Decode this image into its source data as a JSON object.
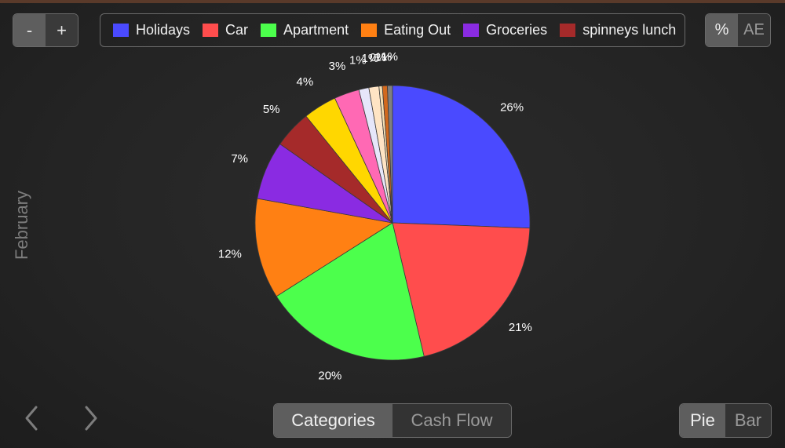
{
  "toolbar": {
    "zoom_out_label": "-",
    "zoom_in_label": "+",
    "unit_percent_label": "%",
    "unit_currency_label": "AE"
  },
  "side_label": "February",
  "view_toggle": {
    "categories_label": "Categories",
    "cashflow_label": "Cash Flow"
  },
  "type_toggle": {
    "pie_label": "Pie",
    "bar_label": "Bar"
  },
  "chart_data": {
    "type": "pie",
    "title": "",
    "legend_position": "top",
    "legend": [
      {
        "name": "Holidays",
        "color": "#4a4aff"
      },
      {
        "name": "Car",
        "color": "#ff4d4d"
      },
      {
        "name": "Apartment",
        "color": "#4cff4c"
      },
      {
        "name": "Eating Out",
        "color": "#ff8013"
      },
      {
        "name": "Groceries",
        "color": "#8a2be2"
      },
      {
        "name": "spinneys lunch",
        "color": "#a52a2a"
      }
    ],
    "slices": [
      {
        "value": 26,
        "label": "26%",
        "color": "#4a4aff"
      },
      {
        "value": 21,
        "label": "21%",
        "color": "#ff4d4d"
      },
      {
        "value": 20,
        "label": "20%",
        "color": "#4cff4c"
      },
      {
        "value": 12,
        "label": "12%",
        "color": "#ff8013"
      },
      {
        "value": 7,
        "label": "7%",
        "color": "#8a2be2"
      },
      {
        "value": 4.5,
        "label": "5%",
        "color": "#a52a2a"
      },
      {
        "value": 4,
        "label": "4%",
        "color": "#ffd700"
      },
      {
        "value": 3,
        "label": "3%",
        "color": "#ff69b4"
      },
      {
        "value": 1.2,
        "label": "1%",
        "color": "#e6e6fa"
      },
      {
        "value": 1.2,
        "label": "1%",
        "color": "#ffe4c4"
      },
      {
        "value": 0.4,
        "label": "0%",
        "color": "#f5deb3"
      },
      {
        "value": 0.6,
        "label": "1%",
        "color": "#d2691e"
      },
      {
        "value": 0.6,
        "label": "1%",
        "color": "#808080"
      }
    ]
  }
}
